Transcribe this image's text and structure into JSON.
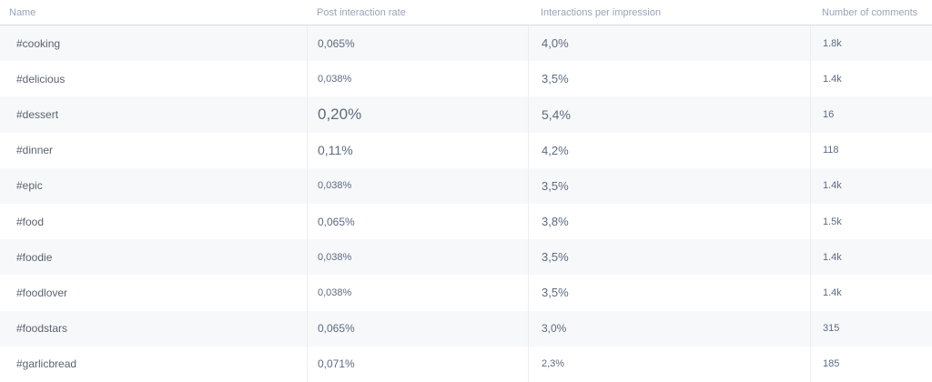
{
  "table": {
    "columns": {
      "name": "Name",
      "post_interaction_rate": "Post interaction rate",
      "interactions_per_impression": "Interactions per impression",
      "comments": "Number of comments"
    },
    "rows": [
      {
        "name": "#cooking",
        "pir": "0,065%",
        "pir_em": 2,
        "ipi": "4,0%",
        "ipi_em": 3,
        "comments": "1.8k"
      },
      {
        "name": "#delicious",
        "pir": "0,038%",
        "pir_em": 1,
        "ipi": "3,5%",
        "ipi_em": 3,
        "comments": "1.4k"
      },
      {
        "name": "#dessert",
        "pir": "0,20%",
        "pir_em": 6,
        "ipi": "5,4%",
        "ipi_em": 4,
        "comments": "16"
      },
      {
        "name": "#dinner",
        "pir": "0,11%",
        "pir_em": 4,
        "ipi": "4,2%",
        "ipi_em": 3,
        "comments": "118"
      },
      {
        "name": "#epic",
        "pir": "0,038%",
        "pir_em": 1,
        "ipi": "3,5%",
        "ipi_em": 3,
        "comments": "1.4k"
      },
      {
        "name": "#food",
        "pir": "0,065%",
        "pir_em": 2,
        "ipi": "3,8%",
        "ipi_em": 3,
        "comments": "1.5k"
      },
      {
        "name": "#foodie",
        "pir": "0,038%",
        "pir_em": 1,
        "ipi": "3,5%",
        "ipi_em": 3,
        "comments": "1.4k"
      },
      {
        "name": "#foodlover",
        "pir": "0,038%",
        "pir_em": 1,
        "ipi": "3,5%",
        "ipi_em": 3,
        "comments": "1.4k"
      },
      {
        "name": "#foodstars",
        "pir": "0,065%",
        "pir_em": 2,
        "ipi": "3,0%",
        "ipi_em": 2,
        "comments": "315"
      },
      {
        "name": "#garlicbread",
        "pir": "0,071%",
        "pir_em": 2,
        "ipi": "2,3%",
        "ipi_em": 1,
        "comments": "185"
      }
    ]
  },
  "colors": {
    "header_text": "#98a4b5",
    "name_text": "#5a6370",
    "value_text": "#5d6b83",
    "stripe_bg": "#f7f8f9",
    "separator": "#ecedf0",
    "header_border": "#d9dbde"
  }
}
